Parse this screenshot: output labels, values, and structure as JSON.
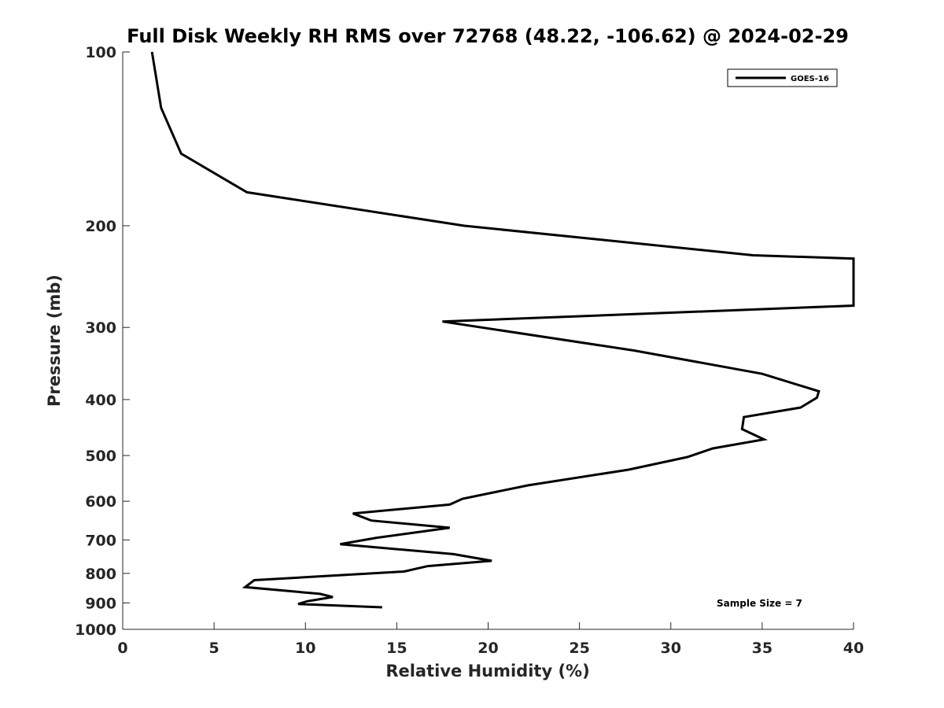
{
  "chart_data": {
    "type": "line",
    "title": "Full Disk Weekly RH RMS over 72768 (48.22, -106.62) @ 2024-02-29",
    "xlabel": "Relative Humidity (%)",
    "ylabel": "Pressure (mb)",
    "xlim": [
      0,
      40
    ],
    "ylim": [
      100,
      1000
    ],
    "y_scale": "log",
    "y_reversed": true,
    "grid": false,
    "legend_position": "top-right",
    "x_ticks": [
      0,
      5,
      10,
      15,
      20,
      25,
      30,
      35,
      40
    ],
    "x_tick_labels": [
      "0",
      "5",
      "10",
      "15",
      "20",
      "25",
      "30",
      "35",
      "40"
    ],
    "y_ticks": [
      100,
      200,
      300,
      400,
      500,
      600,
      700,
      800,
      900,
      1000
    ],
    "y_tick_labels": [
      "100",
      "200",
      "300",
      "400",
      "500",
      "600",
      "700",
      "800",
      "900",
      "1000"
    ],
    "colors": {
      "series": "#000000"
    },
    "series": [
      {
        "name": "GOES-16",
        "points": [
          [
            1.6,
            100
          ],
          [
            2.1,
            125
          ],
          [
            3.2,
            150
          ],
          [
            6.8,
            175
          ],
          [
            18.7,
            200
          ],
          [
            34.5,
            225
          ],
          [
            40,
            228
          ],
          [
            40,
            275
          ],
          [
            17.5,
            293
          ],
          [
            28.0,
            329
          ],
          [
            35.0,
            361
          ],
          [
            38.1,
            387
          ],
          [
            38.0,
            397
          ],
          [
            37.1,
            413
          ],
          [
            34.0,
            429
          ],
          [
            33.9,
            450
          ],
          [
            35.1,
            469
          ],
          [
            32.3,
            486
          ],
          [
            30.9,
            503
          ],
          [
            27.7,
            529
          ],
          [
            22.2,
            563
          ],
          [
            18.6,
            594
          ],
          [
            17.9,
            608
          ],
          [
            12.6,
            630
          ],
          [
            13.6,
            648
          ],
          [
            17.9,
            667
          ],
          [
            13.9,
            694
          ],
          [
            11.9,
            712
          ],
          [
            18.1,
            741
          ],
          [
            20.2,
            761
          ],
          [
            16.7,
            777
          ],
          [
            15.4,
            794
          ],
          [
            7.2,
            822
          ],
          [
            6.7,
            845
          ],
          [
            10.8,
            868
          ],
          [
            11.5,
            879
          ],
          [
            10.1,
            894
          ],
          [
            9.6,
            904
          ],
          [
            14.2,
            916
          ]
        ]
      }
    ],
    "annotations": [
      "Sample Size = 7"
    ]
  }
}
